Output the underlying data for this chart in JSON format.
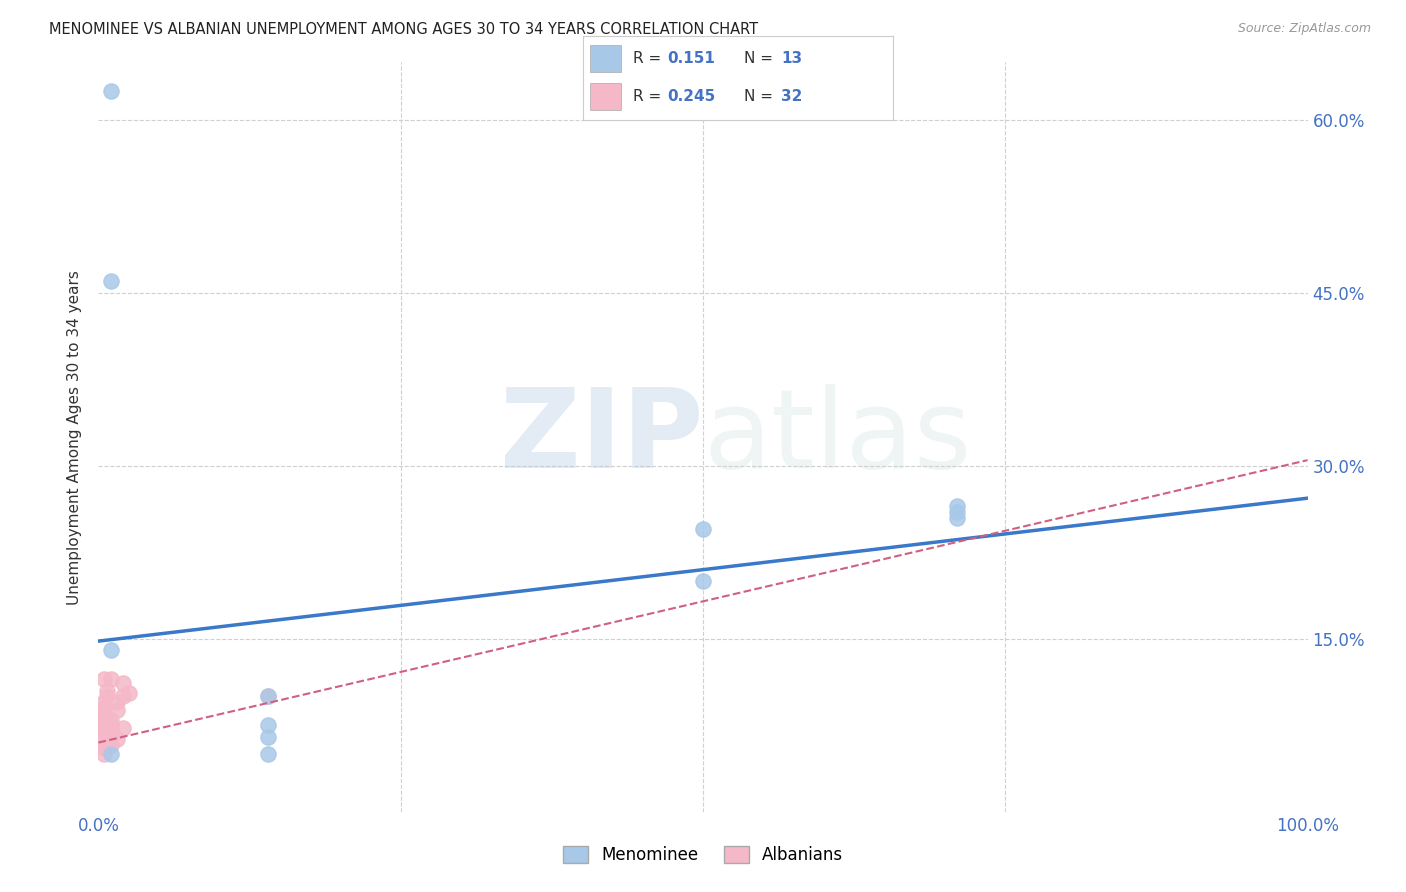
{
  "title": "MENOMINEE VS ALBANIAN UNEMPLOYMENT AMONG AGES 30 TO 34 YEARS CORRELATION CHART",
  "source": "Source: ZipAtlas.com",
  "ylabel": "Unemployment Among Ages 30 to 34 years",
  "xlim": [
    0.0,
    1.0
  ],
  "ylim": [
    0.0,
    0.65
  ],
  "xticks": [
    0.0,
    0.25,
    0.5,
    0.75,
    1.0
  ],
  "xtick_labels": [
    "0.0%",
    "",
    "",
    "",
    "100.0%"
  ],
  "ytick_positions": [
    0.15,
    0.3,
    0.45,
    0.6
  ],
  "ytick_labels": [
    "15.0%",
    "30.0%",
    "45.0%",
    "60.0%"
  ],
  "watermark_zip": "ZIP",
  "watermark_atlas": "atlas",
  "legend_r_menominee": "0.151",
  "legend_n_menominee": "13",
  "legend_r_albanians": "0.245",
  "legend_n_albanians": "32",
  "menominee_color": "#a8c8e8",
  "albanian_color": "#f4b8c8",
  "trendline_menominee_color": "#3a78c9",
  "trendline_albanian_color": "#d06080",
  "menominee_scatter": [
    [
      0.01,
      0.625
    ],
    [
      0.01,
      0.46
    ],
    [
      0.01,
      0.14
    ],
    [
      0.01,
      0.05
    ],
    [
      0.14,
      0.1
    ],
    [
      0.14,
      0.065
    ],
    [
      0.14,
      0.05
    ],
    [
      0.5,
      0.245
    ],
    [
      0.5,
      0.2
    ],
    [
      0.71,
      0.265
    ],
    [
      0.71,
      0.26
    ],
    [
      0.71,
      0.255
    ],
    [
      0.14,
      0.075
    ]
  ],
  "albanian_scatter": [
    [
      0.005,
      0.115
    ],
    [
      0.005,
      0.095
    ],
    [
      0.005,
      0.09
    ],
    [
      0.005,
      0.085
    ],
    [
      0.005,
      0.082
    ],
    [
      0.005,
      0.08
    ],
    [
      0.005,
      0.078
    ],
    [
      0.005,
      0.075
    ],
    [
      0.005,
      0.072
    ],
    [
      0.005,
      0.07
    ],
    [
      0.005,
      0.068
    ],
    [
      0.005,
      0.065
    ],
    [
      0.005,
      0.062
    ],
    [
      0.005,
      0.06
    ],
    [
      0.005,
      0.055
    ],
    [
      0.005,
      0.05
    ],
    [
      0.007,
      0.105
    ],
    [
      0.007,
      0.1
    ],
    [
      0.01,
      0.115
    ],
    [
      0.01,
      0.08
    ],
    [
      0.01,
      0.075
    ],
    [
      0.01,
      0.07
    ],
    [
      0.01,
      0.065
    ],
    [
      0.01,
      0.058
    ],
    [
      0.015,
      0.095
    ],
    [
      0.015,
      0.088
    ],
    [
      0.015,
      0.063
    ],
    [
      0.02,
      0.112
    ],
    [
      0.02,
      0.1
    ],
    [
      0.02,
      0.073
    ],
    [
      0.025,
      0.103
    ],
    [
      0.14,
      0.1
    ]
  ],
  "menominee_trendline_x": [
    0.0,
    1.0
  ],
  "menominee_trendline_y": [
    0.148,
    0.272
  ],
  "albanian_trendline_x": [
    0.0,
    1.0
  ],
  "albanian_trendline_y": [
    0.06,
    0.305
  ],
  "grid_color": "#d0d0d0",
  "background_color": "#ffffff",
  "scatter_size": 120
}
